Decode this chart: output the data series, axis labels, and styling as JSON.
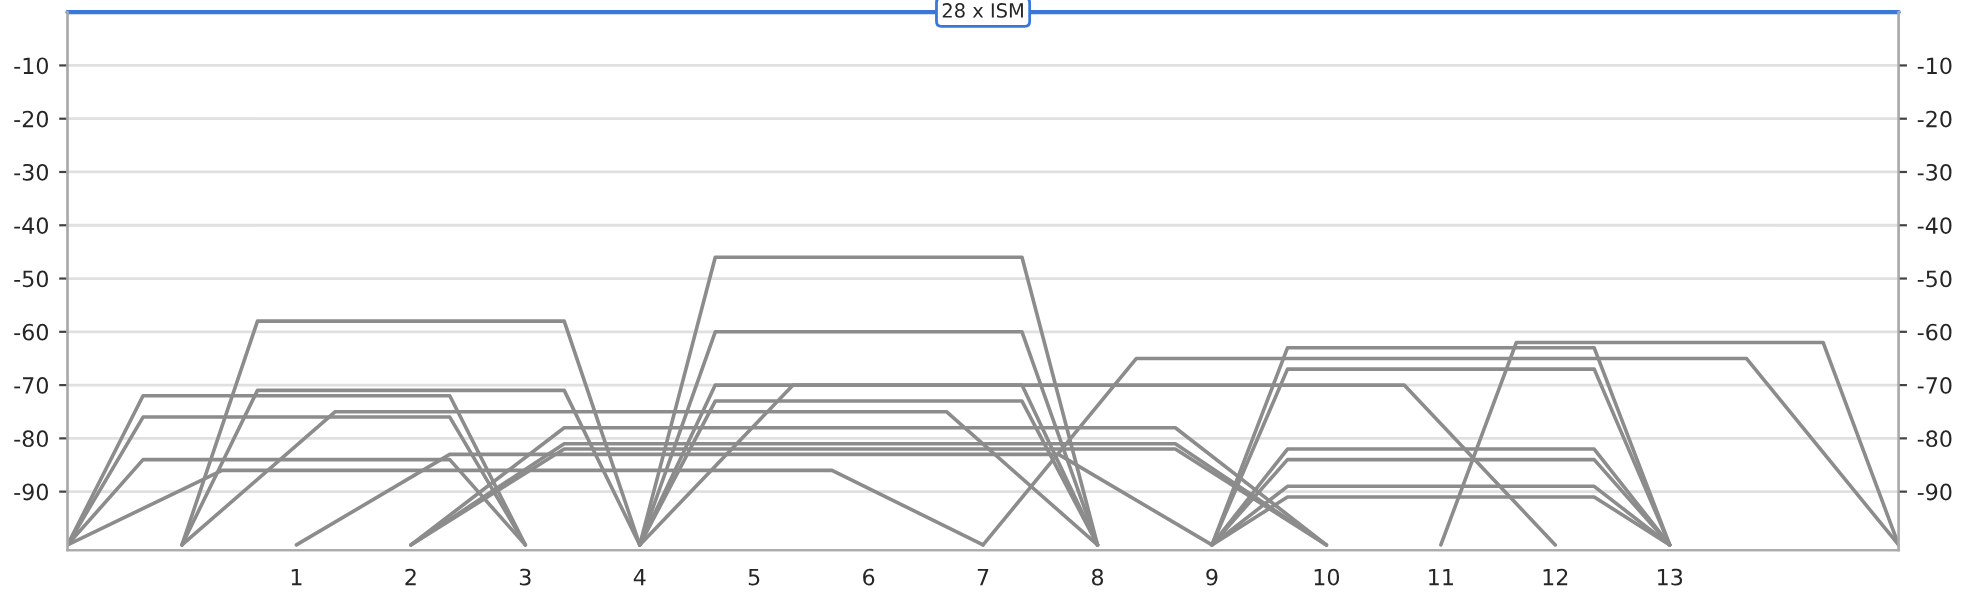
{
  "chart_data": {
    "type": "line",
    "xlim": [
      -1,
      15
    ],
    "xticks": [
      1,
      2,
      3,
      4,
      5,
      6,
      7,
      8,
      9,
      10,
      11,
      12,
      13
    ],
    "ylim": [
      -101,
      0
    ],
    "yticks": [
      -90,
      -80,
      -70,
      -60,
      -50,
      -40,
      -30,
      -20,
      -10
    ],
    "y2lim": [
      -101,
      0
    ],
    "y2ticks": [
      -90,
      -80,
      -70,
      -60,
      -50,
      -40,
      -30,
      -20,
      -10
    ],
    "grid": "y",
    "legend": false,
    "marker": "none",
    "line_style": "solid",
    "ref_lines": [
      {
        "axis": "y",
        "value": 0,
        "label": "28 x ISM",
        "color": "#3a78d8"
      }
    ],
    "series": [
      {
        "color": "#8c8c8c",
        "x": [
          -1,
          -0.34,
          2.34,
          3
        ],
        "values": [
          -100,
          -72,
          -72,
          -100
        ]
      },
      {
        "color": "#8c8c8c",
        "x": [
          -1,
          -0.34,
          2.34,
          3
        ],
        "values": [
          -100,
          -76,
          -76,
          -100
        ]
      },
      {
        "color": "#8c8c8c",
        "x": [
          -1,
          -0.34,
          2.34,
          3
        ],
        "values": [
          -100,
          -84,
          -84,
          -100
        ]
      },
      {
        "color": "#8c8c8c",
        "x": [
          -1,
          0.35,
          5.68,
          7
        ],
        "values": [
          -100,
          -86,
          -86,
          -100
        ]
      },
      {
        "color": "#8c8c8c",
        "x": [
          0,
          0.66,
          3.34,
          4
        ],
        "values": [
          -100,
          -58,
          -58,
          -100
        ]
      },
      {
        "color": "#8c8c8c",
        "x": [
          0,
          0.66,
          3.34,
          4
        ],
        "values": [
          -100,
          -71,
          -71,
          -100
        ]
      },
      {
        "color": "#8c8c8c",
        "x": [
          0,
          1.34,
          6.68,
          8
        ],
        "values": [
          -100,
          -75,
          -75,
          -100
        ]
      },
      {
        "color": "#8c8c8c",
        "x": [
          1,
          2.34,
          7.66,
          9
        ],
        "values": [
          -100,
          -83,
          -83,
          -100
        ]
      },
      {
        "color": "#8c8c8c",
        "x": [
          2,
          3.34,
          8.68,
          10
        ],
        "values": [
          -100,
          -78,
          -78,
          -100
        ]
      },
      {
        "color": "#8c8c8c",
        "x": [
          2,
          3.34,
          8.68,
          10
        ],
        "values": [
          -100,
          -81,
          -81,
          -100
        ]
      },
      {
        "color": "#8c8c8c",
        "x": [
          2,
          3.34,
          8.68,
          10
        ],
        "values": [
          -100,
          -82,
          -82,
          -100
        ]
      },
      {
        "color": "#8c8c8c",
        "x": [
          4,
          4.66,
          7.34,
          8
        ],
        "values": [
          -100,
          -46,
          -46,
          -100
        ]
      },
      {
        "color": "#8c8c8c",
        "x": [
          4,
          4.66,
          7.34,
          8
        ],
        "values": [
          -100,
          -60,
          -60,
          -100
        ]
      },
      {
        "color": "#8c8c8c",
        "x": [
          4,
          4.66,
          7.34,
          8
        ],
        "values": [
          -100,
          -70,
          -70,
          -100
        ]
      },
      {
        "color": "#8c8c8c",
        "x": [
          4,
          4.66,
          7.34,
          8
        ],
        "values": [
          -100,
          -73,
          -73,
          -100
        ]
      },
      {
        "color": "#8c8c8c",
        "x": [
          4,
          5.34,
          10.68,
          12
        ],
        "values": [
          -100,
          -70,
          -70,
          -100
        ]
      },
      {
        "color": "#8c8c8c",
        "x": [
          7,
          8.34,
          13.67,
          15
        ],
        "values": [
          -100,
          -65,
          -65,
          -100
        ]
      },
      {
        "color": "#8c8c8c",
        "x": [
          9,
          9.66,
          12.34,
          13
        ],
        "values": [
          -100,
          -63,
          -63,
          -100
        ]
      },
      {
        "color": "#8c8c8c",
        "x": [
          9,
          9.66,
          12.34,
          13
        ],
        "values": [
          -100,
          -67,
          -67,
          -100
        ]
      },
      {
        "color": "#8c8c8c",
        "x": [
          9,
          9.66,
          12.34,
          13
        ],
        "values": [
          -100,
          -82,
          -82,
          -100
        ]
      },
      {
        "color": "#8c8c8c",
        "x": [
          9,
          9.66,
          12.34,
          13
        ],
        "values": [
          -100,
          -84,
          -84,
          -100
        ]
      },
      {
        "color": "#8c8c8c",
        "x": [
          9,
          9.66,
          12.34,
          13
        ],
        "values": [
          -100,
          -89,
          -89,
          -100
        ]
      },
      {
        "color": "#8c8c8c",
        "x": [
          9,
          9.66,
          12.34,
          13
        ],
        "values": [
          -100,
          -91,
          -91,
          -100
        ]
      },
      {
        "color": "#8c8c8c",
        "x": [
          11,
          11.66,
          14.34,
          15
        ],
        "values": [
          -100,
          -62,
          -62,
          -100
        ]
      }
    ]
  }
}
